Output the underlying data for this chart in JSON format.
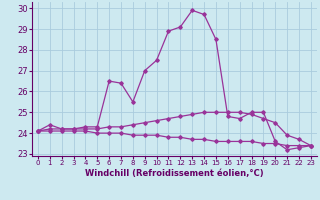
{
  "xlabel": "Windchill (Refroidissement éolien,°C)",
  "background_color": "#cde9f0",
  "grid_color": "#aaccdd",
  "line_color": "#993399",
  "hours": [
    0,
    1,
    2,
    3,
    4,
    5,
    6,
    7,
    8,
    9,
    10,
    11,
    12,
    13,
    14,
    15,
    16,
    17,
    18,
    19,
    20,
    21,
    22,
    23
  ],
  "line1": [
    24.1,
    24.4,
    24.2,
    24.2,
    24.3,
    24.3,
    26.5,
    26.4,
    25.5,
    27.0,
    27.5,
    28.9,
    29.1,
    29.9,
    29.7,
    28.5,
    24.8,
    24.7,
    25.0,
    25.0,
    23.6,
    23.2,
    23.3,
    23.4
  ],
  "line2": [
    24.1,
    24.2,
    24.2,
    24.2,
    24.2,
    24.2,
    24.3,
    24.3,
    24.4,
    24.5,
    24.6,
    24.7,
    24.8,
    24.9,
    25.0,
    25.0,
    25.0,
    25.0,
    24.9,
    24.7,
    24.5,
    23.9,
    23.7,
    23.4
  ],
  "line3": [
    24.1,
    24.1,
    24.1,
    24.1,
    24.1,
    24.0,
    24.0,
    24.0,
    23.9,
    23.9,
    23.9,
    23.8,
    23.8,
    23.7,
    23.7,
    23.6,
    23.6,
    23.6,
    23.6,
    23.5,
    23.5,
    23.4,
    23.4,
    23.4
  ],
  "ylim": [
    22.9,
    30.3
  ],
  "yticks": [
    23,
    24,
    25,
    26,
    27,
    28,
    29,
    30
  ]
}
